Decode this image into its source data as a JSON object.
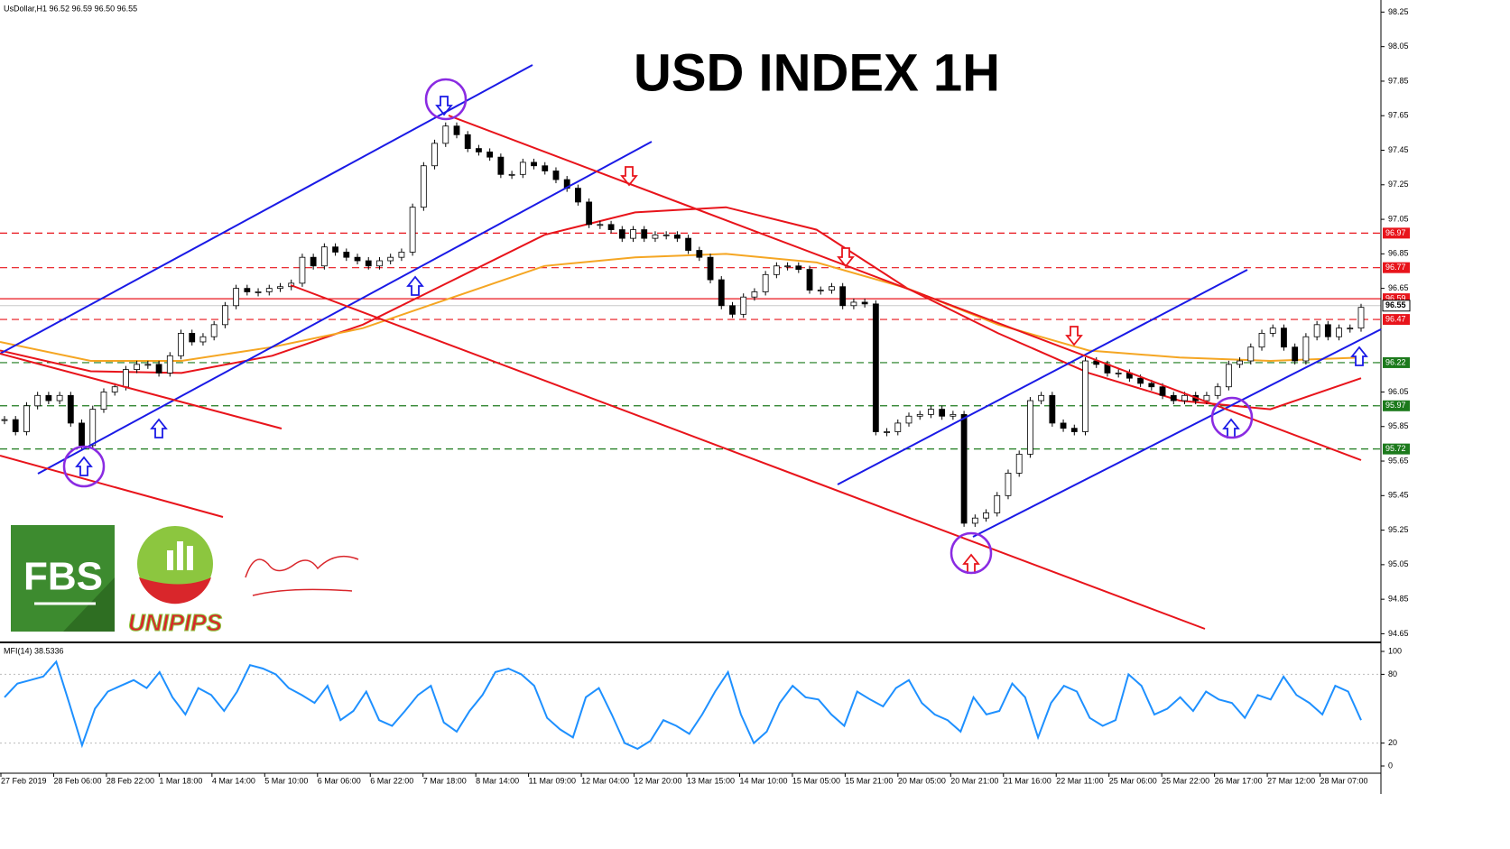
{
  "chart_data": {
    "type": "candlestick",
    "header": "UsDollar,H1  96.52 96.59 96.50 96.55",
    "title": "USD INDEX 1H",
    "up_color": "#ffffff",
    "down_color": "#000000",
    "closes": [
      95.89,
      95.82,
      95.97,
      96.03,
      96.0,
      96.03,
      95.87,
      95.74,
      95.95,
      96.05,
      96.08,
      96.18,
      96.21,
      96.21,
      96.16,
      96.26,
      96.39,
      96.34,
      96.37,
      96.44,
      96.55,
      96.65,
      96.63,
      96.63,
      96.65,
      96.66,
      96.68,
      96.83,
      96.78,
      96.89,
      96.86,
      96.83,
      96.81,
      96.78,
      96.81,
      96.83,
      96.86,
      97.12,
      97.36,
      97.49,
      97.59,
      97.54,
      97.46,
      97.44,
      97.41,
      97.31,
      97.31,
      97.38,
      97.36,
      97.33,
      97.28,
      97.23,
      97.15,
      97.02,
      97.02,
      96.99,
      96.94,
      96.99,
      96.94,
      96.96,
      96.96,
      96.94,
      96.87,
      96.83,
      96.7,
      96.55,
      96.5,
      96.6,
      96.63,
      96.73,
      96.78,
      96.78,
      96.76,
      96.64,
      96.64,
      96.66,
      96.55,
      96.57,
      96.56,
      95.82,
      95.82,
      95.87,
      95.91,
      95.92,
      95.95,
      95.91,
      95.92,
      95.29,
      95.32,
      95.35,
      95.45,
      95.58,
      95.69,
      96.0,
      96.03,
      95.87,
      95.84,
      95.82,
      96.23,
      96.21,
      96.16,
      96.16,
      96.13,
      96.1,
      96.08,
      96.03,
      96.0,
      96.03,
      96.0,
      96.03,
      96.08,
      96.21,
      96.23,
      96.31,
      96.39,
      96.42,
      96.31,
      96.23,
      96.37,
      96.44,
      96.37,
      96.42,
      96.42,
      96.54
    ],
    "moving_averages": [
      {
        "color": "#e8141b",
        "values": [
          96.29,
          96.17,
          96.16,
          96.26,
          96.44,
          96.7,
          96.96,
          97.09,
          97.12,
          96.99,
          96.65,
          96.39,
          96.16,
          96.0,
          95.95,
          96.13
        ]
      },
      {
        "color": "#f5a623",
        "values": [
          96.34,
          96.23,
          96.23,
          96.31,
          96.42,
          96.6,
          96.78,
          96.83,
          96.85,
          96.8,
          96.65,
          96.44,
          96.29,
          96.25,
          96.23,
          96.25
        ]
      }
    ],
    "levels": [
      {
        "value": 96.97,
        "color": "#e8141b",
        "style": "dashed"
      },
      {
        "value": 96.77,
        "color": "#e8141b",
        "style": "dashed"
      },
      {
        "value": 96.59,
        "color": "#e8141b",
        "style": "solid"
      },
      {
        "value": 96.47,
        "color": "#e8141b",
        "style": "dashed"
      },
      {
        "value": 96.22,
        "color": "#1c7a1c",
        "style": "dashed"
      },
      {
        "value": 95.97,
        "color": "#1c7a1c",
        "style": "dashed"
      },
      {
        "value": 95.72,
        "color": "#1c7a1c",
        "style": "dashed"
      }
    ],
    "last_price": 96.55,
    "ylim": [
      94.6,
      98.32
    ],
    "yticks": [
      98.25,
      98.05,
      97.85,
      97.65,
      97.45,
      97.25,
      97.05,
      96.85,
      96.65,
      96.05,
      95.85,
      95.65,
      95.45,
      95.25,
      95.05,
      94.85,
      94.65
    ],
    "x_labels": [
      "27 Feb 2019",
      "28 Feb 06:00",
      "28 Feb 22:00",
      "1 Mar 18:00",
      "4 Mar 14:00",
      "5 Mar 10:00",
      "6 Mar 06:00",
      "6 Mar 22:00",
      "7 Mar 18:00",
      "8 Mar 14:00",
      "11 Mar 09:00",
      "12 Mar 04:00",
      "12 Mar 20:00",
      "13 Mar 15:00",
      "14 Mar 10:00",
      "15 Mar 05:00",
      "15 Mar 21:00",
      "20 Mar 05:00",
      "20 Mar 21:00",
      "21 Mar 16:00",
      "22 Mar 11:00",
      "25 Mar 06:00",
      "25 Mar 22:00",
      "26 Mar 17:00",
      "27 Mar 12:00",
      "28 Mar 07:00"
    ],
    "mfi": {
      "label": "MFI(14) 38.5336",
      "color": "#1e90ff",
      "ylim": [
        0,
        100
      ],
      "yticks": [
        100,
        80,
        20,
        0
      ],
      "values": [
        60,
        72,
        75,
        78,
        91,
        55,
        18,
        50,
        65,
        70,
        75,
        68,
        82,
        60,
        45,
        68,
        62,
        48,
        65,
        88,
        85,
        80,
        68,
        62,
        55,
        70,
        40,
        48,
        65,
        40,
        35,
        48,
        62,
        70,
        38,
        30,
        48,
        62,
        82,
        85,
        80,
        70,
        42,
        32,
        25,
        60,
        68,
        45,
        20,
        15,
        22,
        40,
        35,
        28,
        45,
        65,
        82,
        45,
        20,
        30,
        55,
        70,
        60,
        58,
        45,
        35,
        65,
        58,
        52,
        68,
        75,
        55,
        45,
        40,
        30,
        60,
        45,
        48,
        72,
        60,
        25,
        55,
        70,
        65,
        42,
        35,
        40,
        80,
        70,
        45,
        50,
        60,
        48,
        65,
        58,
        55,
        42,
        62,
        58,
        78,
        62,
        55,
        45,
        70,
        65,
        40
      ]
    },
    "logos": [
      "FBS",
      "UNIPIPS"
    ]
  }
}
